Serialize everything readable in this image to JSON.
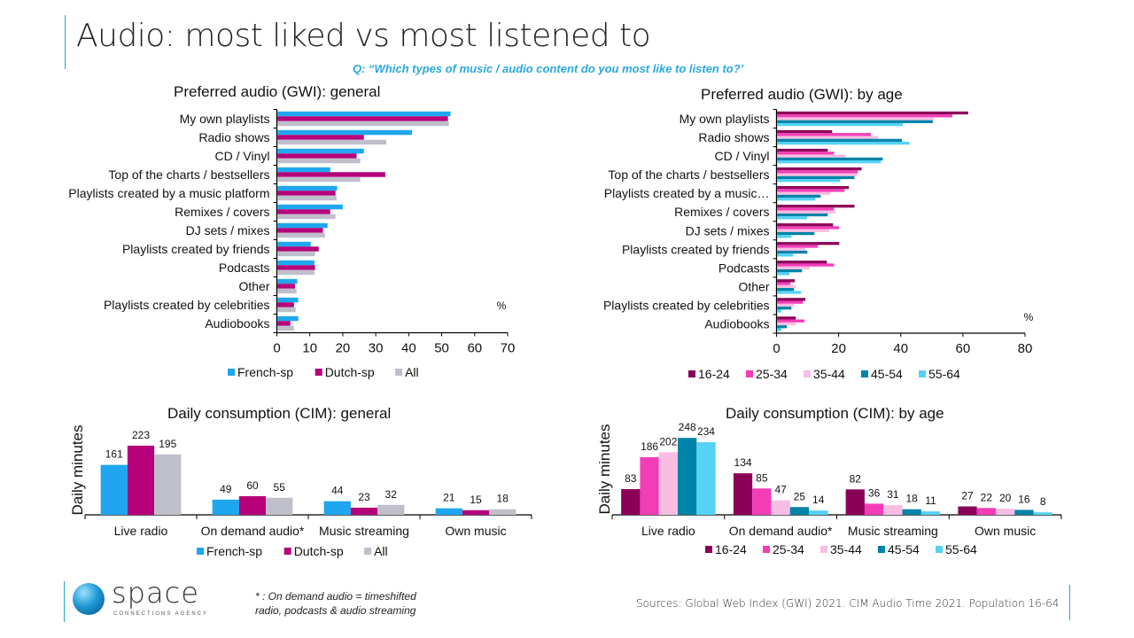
{
  "header": {
    "title": "Audio: most liked vs most listened to",
    "question": "Q: “Which types of music / audio content do you most like to listen to?’"
  },
  "colors": {
    "french": "#1ea7f0",
    "dutch": "#b5007a",
    "all": "#bfbfcc",
    "age_16_24": "#8b0057",
    "age_25_34": "#f33cb8",
    "age_35_44": "#f8bde2",
    "age_45_54": "#0083a8",
    "age_55_64": "#55d2f5",
    "accent": "#2aa7c9",
    "question": "#29a8e0"
  },
  "footer": {
    "footnote_line1": "* : On demand audio = timeshifted",
    "footnote_line2": "radio, podcasts & audio streaming",
    "sources": "Sources: Global Web Index (GWI) 2021. CIM Audio Time 2021. Population 16-64",
    "logo_word": "space",
    "logo_sub": "CONNECTIONS AGENCY"
  },
  "chart_data": [
    {
      "id": "gwi_general",
      "type": "bar",
      "orientation": "horizontal",
      "title": "Preferred audio (GWI): general",
      "unit_label": "%",
      "categories": [
        "My own playlists",
        "Radio shows",
        "CD / Vinyl",
        "Top of the charts / bestsellers",
        "Playlists created by a music platform",
        "Remixes / covers",
        "DJ sets / mixes",
        "Playlists created by friends",
        "Podcasts",
        "Other",
        "Playlists created by celebrities",
        "Audiobooks"
      ],
      "xlim": [
        0,
        70
      ],
      "xticks": [
        0,
        10,
        20,
        30,
        40,
        50,
        60,
        70
      ],
      "legend_position": "bottom",
      "series": [
        {
          "name": "French-sp",
          "color_key": "french",
          "values": [
            52.5,
            40.8,
            26.2,
            16,
            18.1,
            19.8,
            15.2,
            10.1,
            11.2,
            6,
            6.3,
            6.3
          ]
        },
        {
          "name": "Dutch-sp",
          "color_key": "dutch",
          "values": [
            51.7,
            26.2,
            24,
            32.7,
            17.6,
            16,
            13.8,
            12.5,
            11.4,
            5.3,
            5,
            3.9
          ]
        },
        {
          "name": "All",
          "color_key": "all",
          "values": [
            52,
            33,
            25.1,
            25.1,
            17.9,
            17.6,
            14.4,
            11.4,
            11.2,
            5.8,
            5.5,
            5
          ]
        }
      ]
    },
    {
      "id": "gwi_age",
      "type": "bar",
      "orientation": "horizontal",
      "title": "Preferred audio (GWI): by age",
      "unit_label": "%",
      "categories": [
        "My own playlists",
        "Radio shows",
        "CD / Vinyl",
        "Top of the charts / bestsellers",
        "Playlists created by a music…",
        "Remixes / covers",
        "DJ sets / mixes",
        "Playlists created by friends",
        "Podcasts",
        "Other",
        "Playlists created by celebrities",
        "Audiobooks"
      ],
      "xlim": [
        0,
        80
      ],
      "xticks": [
        0,
        20,
        40,
        60,
        80
      ],
      "legend_position": "bottom",
      "series": [
        {
          "name": "16-24",
          "color_key": "age_16_24",
          "values": [
            61.5,
            17.7,
            16.3,
            27.2,
            23.1,
            24.9,
            18,
            20,
            16,
            5.7,
            9.1,
            6
          ]
        },
        {
          "name": "25-34",
          "color_key": "age_25_34",
          "values": [
            56.4,
            30.2,
            18.3,
            26,
            21.7,
            18.3,
            20,
            13.1,
            18.3,
            4.3,
            8.3,
            8.8
          ]
        },
        {
          "name": "35-44",
          "color_key": "age_35_44",
          "values": [
            50.4,
            32.5,
            22,
            25.8,
            17.2,
            18.8,
            16.8,
            9.1,
            10.5,
            6,
            5.4,
            6
          ]
        },
        {
          "name": "45-54",
          "color_key": "age_45_54",
          "values": [
            50.1,
            40.2,
            34,
            24.9,
            14,
            16.3,
            12,
            9.7,
            8,
            5.4,
            4.6,
            3.1
          ]
        },
        {
          "name": "55-64",
          "color_key": "age_55_64",
          "values": [
            40.4,
            42.6,
            33.4,
            20.3,
            12.3,
            9.7,
            4.6,
            5.1,
            4,
            7.7,
            1.4,
            1.4
          ]
        }
      ]
    },
    {
      "id": "cim_general",
      "type": "bar",
      "orientation": "vertical",
      "title": "Daily consumption (CIM): general",
      "ylabel": "Daily minutes",
      "categories": [
        "Live radio",
        "On demand audio*",
        "Music streaming",
        "Own music"
      ],
      "ylim": [
        0,
        230
      ],
      "legend_position": "bottom",
      "series": [
        {
          "name": "French-sp",
          "color_key": "french",
          "values": [
            161,
            49,
            44,
            21
          ]
        },
        {
          "name": "Dutch-sp",
          "color_key": "dutch",
          "values": [
            223,
            60,
            23,
            15
          ]
        },
        {
          "name": "All",
          "color_key": "all",
          "values": [
            195,
            55,
            32,
            18
          ]
        }
      ]
    },
    {
      "id": "cim_age",
      "type": "bar",
      "orientation": "vertical",
      "title": "Daily consumption (CIM): by age",
      "ylabel": "Daily minutes",
      "categories": [
        "Live radio",
        "On demand audio*",
        "Music streaming",
        "Own music"
      ],
      "ylim": [
        0,
        255
      ],
      "legend_position": "bottom",
      "series": [
        {
          "name": "16-24",
          "color_key": "age_16_24",
          "values": [
            83,
            134,
            82,
            27
          ]
        },
        {
          "name": "25-34",
          "color_key": "age_25_34",
          "values": [
            186,
            85,
            36,
            22
          ]
        },
        {
          "name": "35-44",
          "color_key": "age_35_44",
          "values": [
            202,
            47,
            31,
            20
          ]
        },
        {
          "name": "45-54",
          "color_key": "age_45_54",
          "values": [
            248,
            25,
            18,
            16
          ]
        },
        {
          "name": "55-64",
          "color_key": "age_55_64",
          "values": [
            234,
            14,
            11,
            8
          ]
        }
      ]
    }
  ]
}
